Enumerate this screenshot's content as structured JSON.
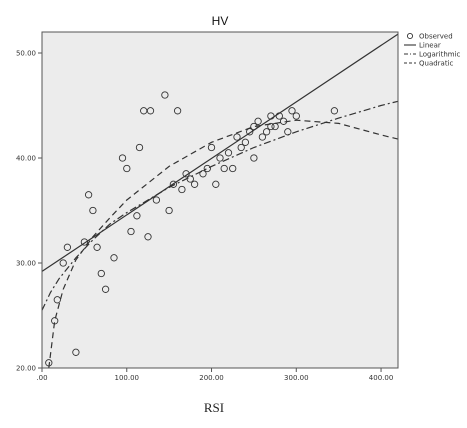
{
  "chart_data": {
    "type": "scatter",
    "title": "HV",
    "xlabel": "RSI",
    "ylabel": "",
    "xlim": [
      0,
      420
    ],
    "ylim": [
      20,
      52
    ],
    "xticks": [
      0,
      100,
      200,
      300,
      400
    ],
    "xtick_labels": [
      ".00",
      "100.00",
      "200.00",
      "300.00",
      "400.00"
    ],
    "yticks": [
      20,
      30,
      40,
      50
    ],
    "ytick_labels": [
      "20.00",
      "30.00",
      "40.00",
      "50.00"
    ],
    "grid": false,
    "legend_position": "top-right, outside plot",
    "legend": [
      "Observed",
      "Linear",
      "Logarithmic",
      "Quadratic"
    ],
    "colors": {
      "plot_background": "#ececec",
      "marks": "#333333"
    },
    "observed": [
      [
        8,
        20.5
      ],
      [
        15,
        24.5
      ],
      [
        18,
        26.5
      ],
      [
        25,
        30
      ],
      [
        30,
        31.5
      ],
      [
        40,
        21.5
      ],
      [
        50,
        32
      ],
      [
        55,
        36.5
      ],
      [
        60,
        35
      ],
      [
        65,
        31.5
      ],
      [
        70,
        29
      ],
      [
        75,
        27.5
      ],
      [
        85,
        30.5
      ],
      [
        95,
        40
      ],
      [
        100,
        39
      ],
      [
        105,
        33
      ],
      [
        112,
        34.5
      ],
      [
        115,
        41
      ],
      [
        120,
        44.5
      ],
      [
        125,
        32.5
      ],
      [
        128,
        44.5
      ],
      [
        135,
        36
      ],
      [
        145,
        46
      ],
      [
        150,
        35
      ],
      [
        155,
        37.5
      ],
      [
        160,
        44.5
      ],
      [
        165,
        37
      ],
      [
        170,
        38.5
      ],
      [
        175,
        38
      ],
      [
        180,
        37.5
      ],
      [
        190,
        38.5
      ],
      [
        195,
        39
      ],
      [
        200,
        41
      ],
      [
        205,
        37.5
      ],
      [
        210,
        40
      ],
      [
        215,
        39
      ],
      [
        220,
        40.5
      ],
      [
        225,
        39
      ],
      [
        230,
        42
      ],
      [
        235,
        41
      ],
      [
        240,
        41.5
      ],
      [
        245,
        42.5
      ],
      [
        250,
        40
      ],
      [
        250,
        43
      ],
      [
        255,
        43.5
      ],
      [
        260,
        42
      ],
      [
        265,
        42.5
      ],
      [
        270,
        44
      ],
      [
        270,
        43
      ],
      [
        275,
        43
      ],
      [
        280,
        44
      ],
      [
        285,
        43.5
      ],
      [
        290,
        42.5
      ],
      [
        295,
        44.5
      ],
      [
        300,
        44
      ],
      [
        345,
        44.5
      ]
    ],
    "series": [
      {
        "name": "Linear",
        "style": "solid",
        "x": [
          0,
          420
        ],
        "y": [
          29.2,
          51.8
        ]
      },
      {
        "name": "Logarithmic",
        "style": "dash-dot",
        "x": [
          0,
          10,
          20,
          40,
          60,
          80,
          100,
          150,
          200,
          250,
          300,
          350,
          400,
          420
        ],
        "y": [
          25.5,
          27.2,
          28.5,
          30.5,
          32.2,
          33.7,
          34.8,
          37.2,
          39.2,
          41.0,
          42.5,
          43.8,
          45.0,
          45.4
        ]
      },
      {
        "name": "Quadratic",
        "style": "dashed",
        "x": [
          8,
          15,
          25,
          40,
          60,
          80,
          100,
          150,
          200,
          250,
          300,
          350,
          400,
          420
        ],
        "y": [
          20,
          24.5,
          27.5,
          30.3,
          32.5,
          34.3,
          36.0,
          39.2,
          41.5,
          43.0,
          43.6,
          43.3,
          42.2,
          41.8
        ]
      }
    ]
  }
}
